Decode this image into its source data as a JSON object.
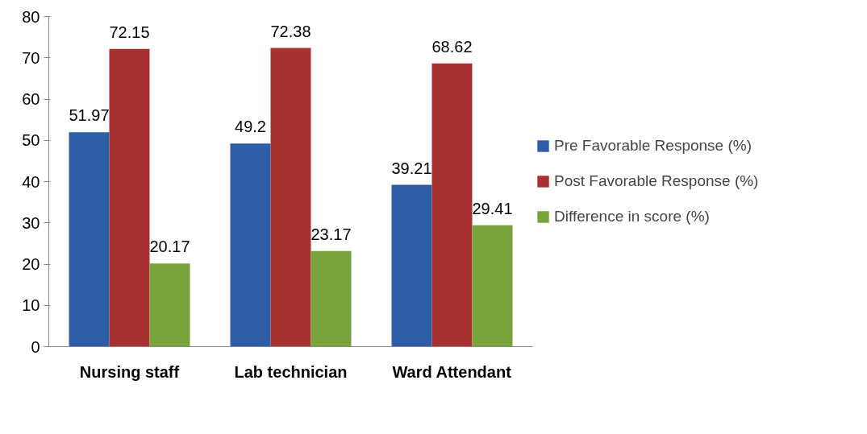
{
  "chart_data": {
    "type": "bar",
    "categories": [
      "Nursing staff",
      "Lab technician",
      "Ward Attendant"
    ],
    "series": [
      {
        "name": "Pre Favorable Response (%)",
        "color": "#2f5ea8",
        "values": [
          51.97,
          49.2,
          39.21
        ]
      },
      {
        "name": "Post Favorable Response (%)",
        "color": "#a83232",
        "values": [
          72.15,
          72.38,
          68.62
        ]
      },
      {
        "name": "Difference in score (%)",
        "color": "#78a23a",
        "values": [
          20.17,
          23.17,
          29.41
        ]
      }
    ],
    "ylim": [
      0,
      80
    ],
    "yticks": [
      0,
      10,
      20,
      30,
      40,
      50,
      60,
      70,
      80
    ],
    "grid": false,
    "legend": "right",
    "data_labels": true
  }
}
